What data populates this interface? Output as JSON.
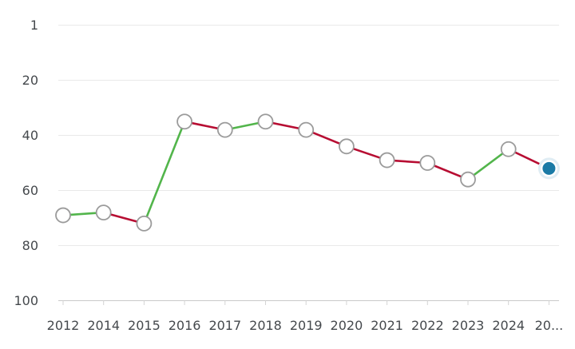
{
  "chart_data": {
    "type": "line",
    "title": "",
    "xlabel": "",
    "ylabel": "",
    "categories": [
      "2012",
      "2014",
      "2015",
      "2016",
      "2017",
      "2018",
      "2019",
      "2020",
      "2021",
      "2022",
      "2023",
      "2024",
      "20..."
    ],
    "values": [
      69,
      68,
      72,
      35,
      38,
      35,
      38,
      44,
      49,
      50,
      56,
      45,
      52
    ],
    "segment_colors": [
      "improve",
      "decline",
      "improve",
      "decline",
      "improve",
      "decline",
      "decline",
      "decline",
      "decline",
      "decline",
      "improve",
      "decline"
    ],
    "y_ticks": [
      1,
      20,
      40,
      60,
      80,
      100
    ],
    "y_axis_inverted": true,
    "ylim": [
      1,
      100
    ],
    "grid": true,
    "legend_position": "none",
    "colors": {
      "improve": "#52b54b",
      "decline": "#b70d32",
      "marker_fill": "#ffffff",
      "marker_stroke": "#9b9b9b",
      "current_marker_fill": "#1a7aa6",
      "current_marker_halo": "#e0edf4",
      "gridline": "#e9e9e9",
      "axis_line": "#c9c9c9",
      "tick_mark": "#d4d4d4",
      "label_color": "#45494d"
    }
  }
}
